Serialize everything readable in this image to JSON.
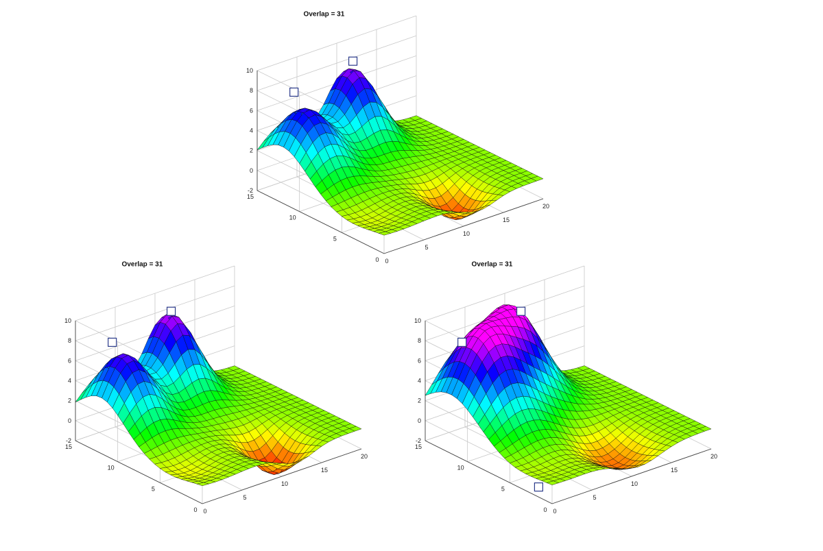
{
  "chart_data": [
    {
      "type": "surface",
      "title": "Overlap = 31",
      "xlim": [
        0,
        20
      ],
      "ylim": [
        0,
        15
      ],
      "zlim": [
        -2,
        10
      ],
      "x_ticks": [
        "0",
        "5",
        "10",
        "15",
        "20"
      ],
      "y_ticks": [
        "0",
        "5",
        "10",
        "15"
      ],
      "z_ticks": [
        "-2",
        "0",
        "2",
        "4",
        "6",
        "8",
        "10"
      ],
      "grid": true,
      "colormap": "hsv",
      "peaks": [
        {
          "x": 3,
          "y": 12,
          "height": 6.5,
          "spread": 2.8
        },
        {
          "x": 11,
          "y": 14,
          "height": 7.5,
          "spread": 2.4
        },
        {
          "x": 12,
          "y": 3,
          "height": -3.0,
          "spread": 2.0
        },
        {
          "x": 2,
          "y": 4,
          "height": -0.8,
          "spread": 2.5
        }
      ],
      "markers": [
        {
          "x": 2.5,
          "y": 13,
          "z": 8
        },
        {
          "x": 11.5,
          "y": 14.5,
          "z": 8
        }
      ]
    },
    {
      "type": "surface",
      "title": "Overlap = 31",
      "xlim": [
        0,
        20
      ],
      "ylim": [
        0,
        15
      ],
      "zlim": [
        -2,
        10
      ],
      "x_ticks": [
        "0",
        "5",
        "10",
        "15",
        "20"
      ],
      "y_ticks": [
        "0",
        "5",
        "10",
        "15"
      ],
      "z_ticks": [
        "-2",
        "0",
        "2",
        "4",
        "6",
        "8",
        "10"
      ],
      "grid": true,
      "colormap": "hsv",
      "peaks": [
        {
          "x": 3,
          "y": 12,
          "height": 7.0,
          "spread": 2.6
        },
        {
          "x": 11,
          "y": 14,
          "height": 8.0,
          "spread": 2.4
        },
        {
          "x": 12,
          "y": 3,
          "height": -3.5,
          "spread": 2.0
        },
        {
          "x": 2,
          "y": 4,
          "height": -1.0,
          "spread": 2.5
        }
      ],
      "markers": [
        {
          "x": 2.5,
          "y": 13,
          "z": 8
        },
        {
          "x": 11.5,
          "y": 14.5,
          "z": 8
        }
      ]
    },
    {
      "type": "surface",
      "title": "Overlap = 31",
      "xlim": [
        0,
        20
      ],
      "ylim": [
        0,
        15
      ],
      "zlim": [
        -2,
        10
      ],
      "x_ticks": [
        "0",
        "5",
        "10",
        "15",
        "20"
      ],
      "y_ticks": [
        "0",
        "5",
        "10",
        "15"
      ],
      "z_ticks": [
        "-2",
        "0",
        "2",
        "4",
        "6",
        "8",
        "10"
      ],
      "grid": true,
      "colormap": "hsv",
      "peaks": [
        {
          "x": 4,
          "y": 12,
          "height": 8.5,
          "spread": 3.2
        },
        {
          "x": 10,
          "y": 14,
          "height": 8.0,
          "spread": 2.8
        },
        {
          "x": 11,
          "y": 3,
          "height": -2.5,
          "spread": 2.6
        },
        {
          "x": 2,
          "y": 4,
          "height": -0.6,
          "spread": 2.5
        }
      ],
      "markers": [
        {
          "x": 2.5,
          "y": 13,
          "z": 8
        },
        {
          "x": 11.5,
          "y": 14.5,
          "z": 8
        },
        {
          "x": 1.5,
          "y": 3,
          "z": -2
        }
      ]
    }
  ]
}
